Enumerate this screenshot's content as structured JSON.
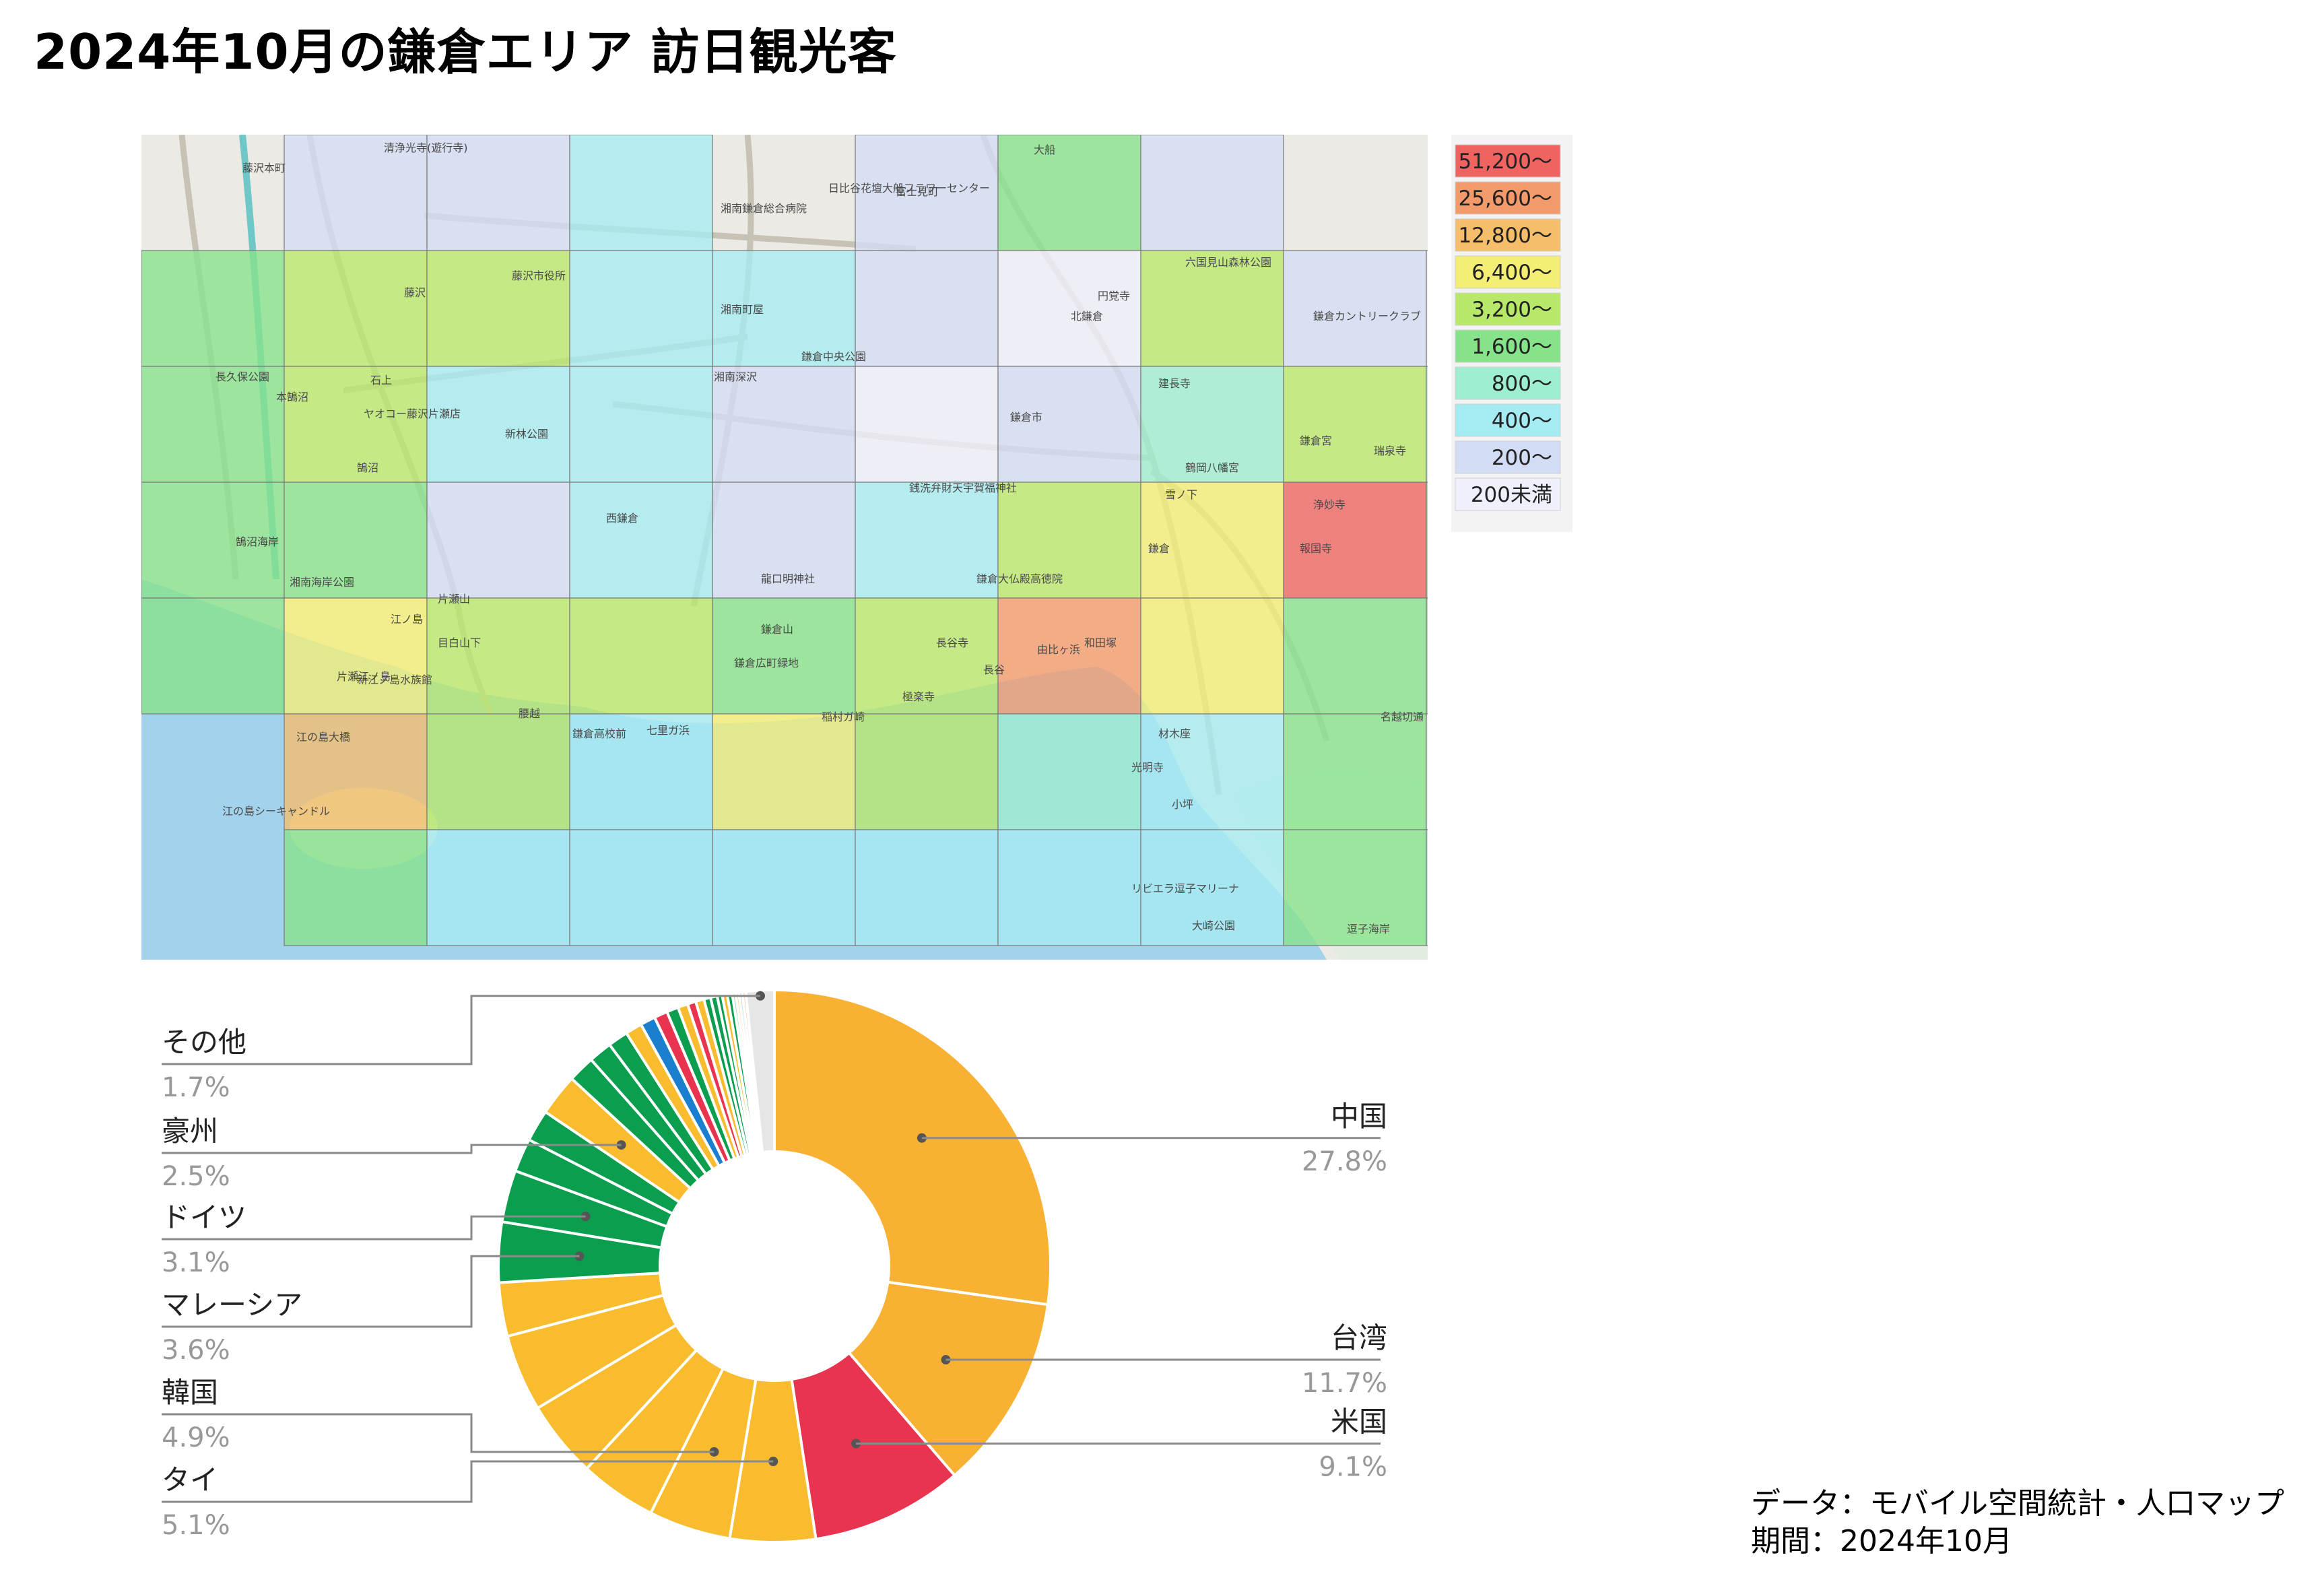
{
  "title": "2024年10月の鎌倉エリア 訪日観光客",
  "credit": {
    "line1": "データ：モバイル空間統計・人口マップ",
    "line2": "期間：2024年10月"
  },
  "map": {
    "legend": [
      {
        "label": "51,200〜",
        "color": "#ef6461"
      },
      {
        "label": "25,600〜",
        "color": "#f39a6b"
      },
      {
        "label": "12,800〜",
        "color": "#f6be6a"
      },
      {
        "label": "6,400〜",
        "color": "#f4ee74"
      },
      {
        "label": "3,200〜",
        "color": "#b8e86a"
      },
      {
        "label": "1,600〜",
        "color": "#86e38a"
      },
      {
        "label": "800〜",
        "color": "#9eeed0"
      },
      {
        "label": "400〜",
        "color": "#a5ecf2"
      },
      {
        "label": "200〜",
        "color": "#d3dcf5"
      },
      {
        "label": "200未満",
        "color": "#eef0fb"
      }
    ],
    "grid": [
      [
        -1,
        8,
        8,
        7,
        -1,
        8,
        5,
        8,
        -1,
        -1
      ],
      [
        5,
        4,
        4,
        7,
        7,
        8,
        9,
        4,
        8,
        9
      ],
      [
        5,
        4,
        7,
        7,
        8,
        9,
        8,
        6,
        4,
        7
      ],
      [
        5,
        5,
        8,
        7,
        8,
        7,
        4,
        3,
        0,
        5
      ],
      [
        5,
        3,
        4,
        4,
        5,
        4,
        1,
        3,
        5,
        5
      ],
      [
        -1,
        2,
        4,
        7,
        3,
        4,
        6,
        7,
        5,
        9
      ],
      [
        -1,
        5,
        7,
        7,
        7,
        7,
        7,
        7,
        5,
        7
      ]
    ],
    "labels": [
      "藤沢本町",
      "藤沢",
      "藤沢市役所",
      "石上",
      "本鵠沼",
      "鵠沼",
      "新林公園",
      "鵠沼海岸",
      "湘南海岸公園",
      "江ノ島",
      "片瀬江ノ島",
      "江の島大橋",
      "江の島シーキャンドル",
      "新江ノ島水族館",
      "片瀬山",
      "目白山下",
      "西鎌倉",
      "湘南深沢",
      "湘南町屋",
      "鎌倉中央公園",
      "鎌倉市",
      "銭洗弁財天宇賀福神社",
      "鎌倉大仏殿高徳院",
      "長谷寺",
      "長谷",
      "由比ヶ浜",
      "極楽寺",
      "稲村ガ崎",
      "七里ガ浜",
      "鎌倉高校前",
      "腰越",
      "北鎌倉",
      "円覚寺",
      "建長寺",
      "鶴岡八幡宮",
      "鎌倉",
      "雪ノ下",
      "報国寺",
      "浄妙寺",
      "材木座",
      "光明寺",
      "小坪",
      "逗子海岸",
      "鎌倉カントリークラブ",
      "湘南鎌倉総合病院",
      "日比谷花壇大船フラワーセンター",
      "富士見町",
      "大船",
      "六国見山森林公園",
      "名越切通",
      "リビエラ逗子マリーナ",
      "大崎公園",
      "瑞泉寺",
      "鎌倉宮",
      "和田塚",
      "龍口明神社",
      "鎌倉広町緑地",
      "鎌倉山",
      "長久保公園",
      "清浄光寺(遊行寺)",
      "ヤオコー藤沢片瀬店"
    ]
  },
  "chart_data": {
    "type": "pie",
    "title": "",
    "named": [
      {
        "name": "中国",
        "value": 27.8,
        "color": "#f8b133"
      },
      {
        "name": "台湾",
        "value": 11.7,
        "color": "#f8b133"
      },
      {
        "name": "米国",
        "value": 9.1,
        "color": "#e8344e"
      },
      {
        "name": "タイ",
        "value": 5.1,
        "color": "#f8bc2e"
      },
      {
        "name": "韓国",
        "value": 4.9,
        "color": "#f8bc2e"
      },
      {
        "name": "マレーシア",
        "value": 3.6,
        "color": "#f8bc2e"
      },
      {
        "name": "ドイツ",
        "value": 3.1,
        "color": "#f8bc2e"
      },
      {
        "name": "豪州",
        "value": 2.5,
        "color": "#f8bc2e"
      },
      {
        "name": "その他",
        "value": 1.7,
        "color": "#e6e6e6"
      }
    ],
    "displayed_values": [
      "27.8%",
      "11.7%",
      "9.1%",
      "5.1%",
      "4.9%",
      "3.6%",
      "3.1%",
      "2.5%",
      "1.7%"
    ],
    "unlabeled_slices": [
      4.6,
      4.6,
      4.6,
      3.2,
      2.0,
      1.9,
      1.6,
      1.4,
      1.2,
      1.0,
      0.9,
      0.8,
      0.7,
      0.6,
      0.5,
      0.5,
      0.4,
      0.4,
      0.3,
      0.3,
      0.3,
      0.2,
      0.2,
      0.2,
      0.2
    ],
    "unlabeled_colors": [
      "#f8bc2e",
      "#f8bc2e",
      "#f8bc2e",
      "#f8bc2e",
      "#0a9e4e",
      "#0a9e4e",
      "#0a9e4e",
      "#0a9e4e",
      "#0a9e4e",
      "#f8bc2e",
      "#1a7fcf",
      "#e8344e",
      "#0a9e4e",
      "#f8bc2e",
      "#e8344e",
      "#f8bc2e",
      "#0a9e4e",
      "#0a9e4e",
      "#0a9e4e",
      "#f8bc2e",
      "#0a9e4e",
      "#86d39a",
      "#f8d88a",
      "#a8d8e8",
      "#f3c7a0"
    ]
  }
}
